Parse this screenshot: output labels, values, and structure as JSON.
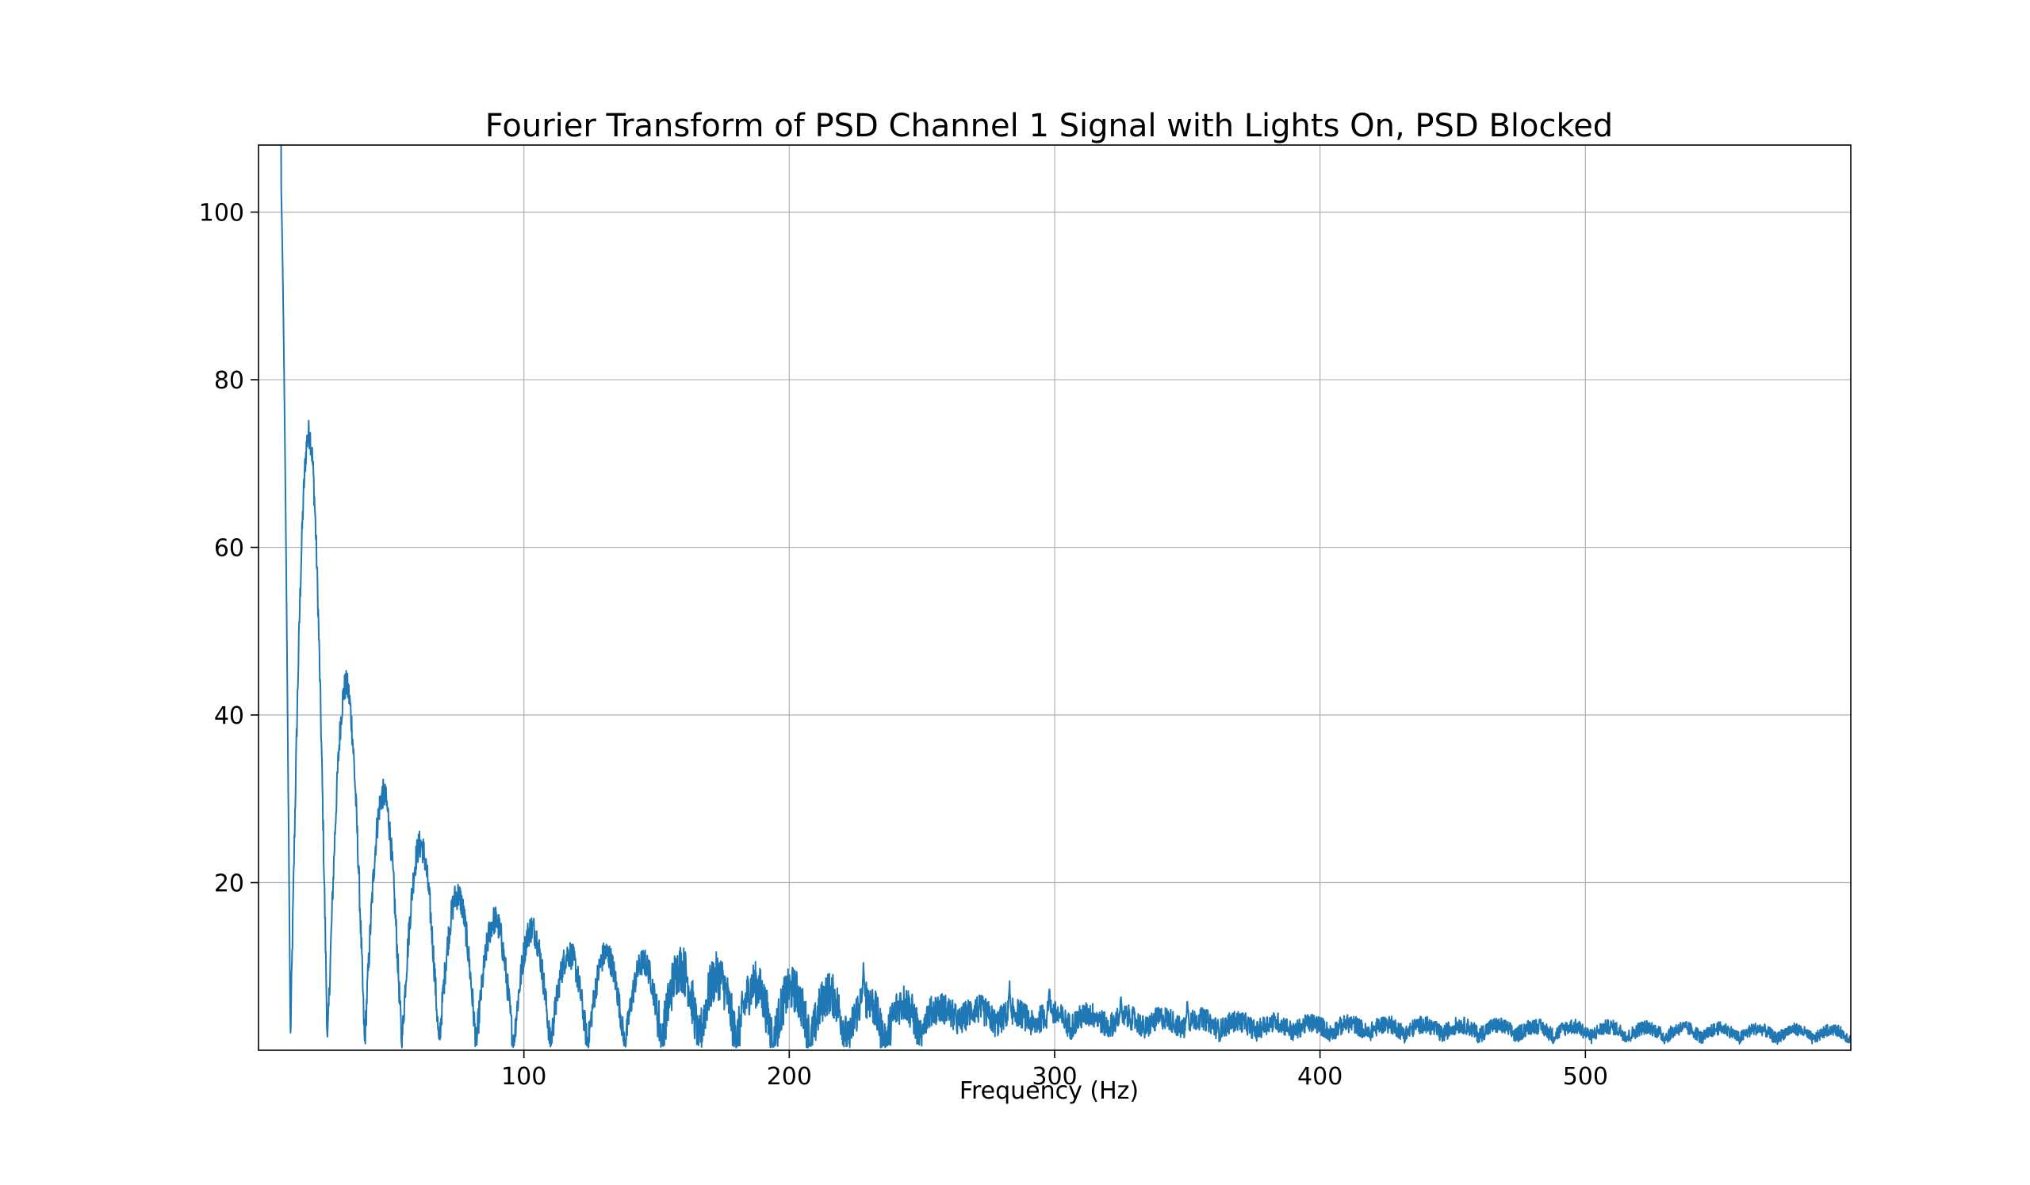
{
  "chart_data": {
    "type": "line",
    "title": "Fourier Transform of PSD Channel 1 Signal with Lights On, PSD Blocked",
    "xlabel": "Frequency (Hz)",
    "ylabel": "",
    "xlim": [
      0,
      600
    ],
    "ylim": [
      0,
      108
    ],
    "x_ticks": [
      100,
      200,
      300,
      400,
      500
    ],
    "x_tick_labels": [
      "100",
      "200",
      "300",
      "400",
      "500"
    ],
    "y_ticks": [
      20,
      40,
      60,
      80,
      100
    ],
    "y_tick_labels": [
      "20",
      "40",
      "60",
      "80",
      "100"
    ],
    "grid": true,
    "legend": "none",
    "line_color": "#1f77b4",
    "grid_color": "#b0b0b0",
    "series": [
      {
        "values_note": "",
        "lobes": {
          "first_null_hz": 12,
          "null_spacing_hz": 14,
          "peak_heights": [
            73,
            43,
            30,
            24,
            18,
            15,
            14,
            11,
            11,
            10,
            9,
            8,
            7,
            6.5,
            6,
            5.5,
            5,
            5,
            5,
            4.5,
            4.5,
            4.5,
            4,
            4,
            4
          ],
          "x_start": 7.5,
          "x_end": 600,
          "main_lobe_peak": 108,
          "noise_floor": [
            [
              100,
              6
            ],
            [
              200,
              5
            ],
            [
              300,
              3.5
            ],
            [
              400,
              2.5
            ],
            [
              500,
              2
            ],
            [
              600,
              1.5
            ]
          ],
          "spikes": [
            [
              228,
              10
            ],
            [
              283,
              7.5
            ],
            [
              298,
              7
            ],
            [
              325,
              6
            ],
            [
              350,
              5.5
            ]
          ]
        }
      }
    ]
  }
}
